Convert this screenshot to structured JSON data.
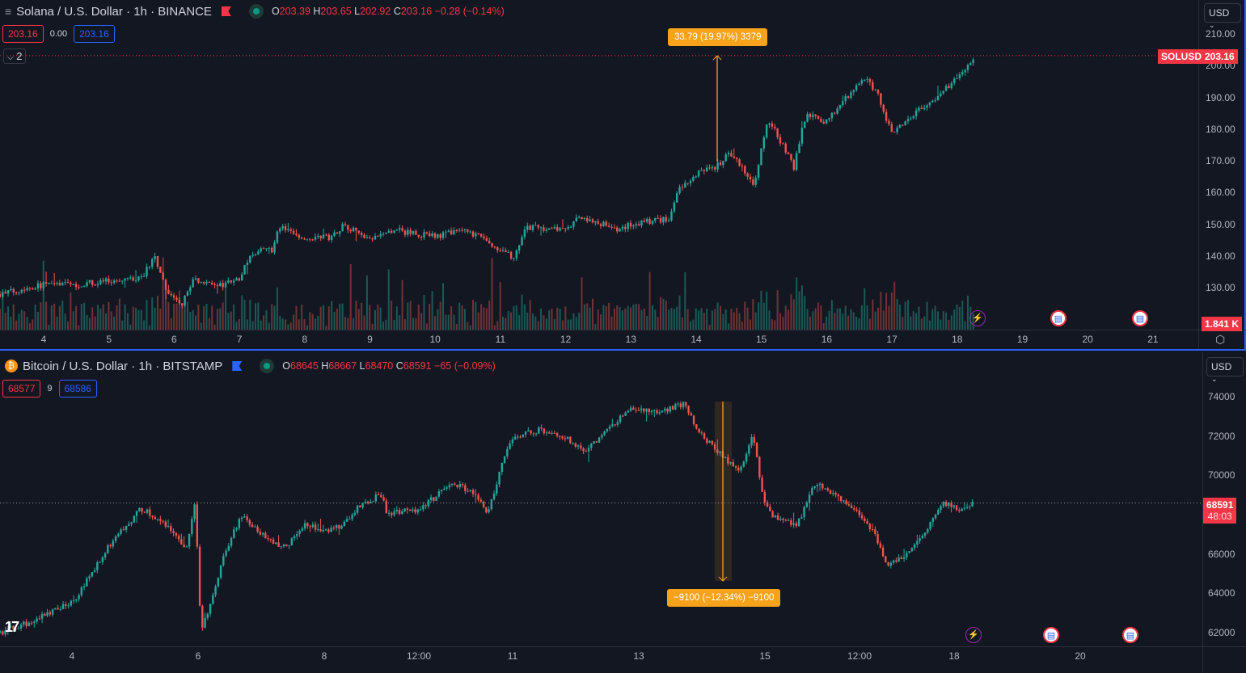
{
  "top": {
    "symbol_title": "Solana / U.S. Dollar · 1h · BINANCE",
    "ohlc": {
      "o_label": "O",
      "o": "203.39",
      "h_label": "H",
      "h": "203.65",
      "l_label": "L",
      "l": "202.92",
      "c_label": "C",
      "c": "203.16",
      "change": "−0.28 (−0.14%)"
    },
    "bid": "203.16",
    "spread": "0.00",
    "ask": "203.16",
    "collapse_label": "2",
    "currency": "USD",
    "price_ticks": [
      "210.00",
      "200.00",
      "190.00",
      "180.00",
      "170.00",
      "160.00",
      "150.00",
      "140.00",
      "130.00"
    ],
    "last_price_symbol": "SOLUSD",
    "last_price": "203.16",
    "volume_label": "1.841 K",
    "time_ticks": [
      "4",
      "5",
      "6",
      "7",
      "8",
      "9",
      "10",
      "11",
      "12",
      "13",
      "14",
      "15",
      "16",
      "17",
      "18",
      "19",
      "20",
      "21"
    ],
    "measure_label": "33.79 (19.97%) 3379",
    "colors": {
      "accent": "#2962ff",
      "up": "#26a69a",
      "down": "#ef5350",
      "measure": "#f7a21b"
    }
  },
  "bottom": {
    "symbol_title": "Bitcoin / U.S. Dollar · 1h · BITSTAMP",
    "ohlc": {
      "o_label": "O",
      "o": "68645",
      "h_label": "H",
      "h": "68667",
      "l_label": "L",
      "l": "68470",
      "c_label": "C",
      "c": "68591",
      "change": "−65 (−0.09%)"
    },
    "bid": "68577",
    "spread": "9",
    "ask": "68586",
    "currency": "USD",
    "price_ticks": [
      "74000",
      "72000",
      "70000",
      "66000",
      "64000",
      "62000"
    ],
    "last_price": "68591",
    "countdown": "48:03",
    "time_ticks": [
      "4",
      "6",
      "8",
      "12:00",
      "11",
      "13",
      "15",
      "12:00",
      "18",
      "20"
    ],
    "measure_label": "−9100 (−12.34%) −9100",
    "logo": "TV"
  },
  "chart_data": [
    {
      "type": "candlestick",
      "series": "SOLUSD 1h",
      "ylim": [
        120,
        212
      ],
      "x_unit": "day",
      "path": [
        [
          3.33,
          128
        ],
        [
          4,
          131
        ],
        [
          4.5,
          131
        ],
        [
          5,
          132
        ],
        [
          5.5,
          133
        ],
        [
          5.7,
          140
        ],
        [
          5.9,
          128
        ],
        [
          6.1,
          124
        ],
        [
          6.3,
          133
        ],
        [
          6.6,
          130
        ],
        [
          7,
          133
        ],
        [
          7.2,
          141
        ],
        [
          7.5,
          142
        ],
        [
          7.6,
          149
        ],
        [
          8,
          146
        ],
        [
          8.4,
          146
        ],
        [
          8.6,
          150
        ],
        [
          9,
          145
        ],
        [
          9.4,
          148
        ],
        [
          10,
          146
        ],
        [
          10.4,
          148
        ],
        [
          10.8,
          145
        ],
        [
          11,
          141
        ],
        [
          11.2,
          140
        ],
        [
          11.4,
          149
        ],
        [
          12,
          148
        ],
        [
          12.2,
          152
        ],
        [
          12.6,
          150
        ],
        [
          12.8,
          148
        ],
        [
          13,
          150
        ],
        [
          13.6,
          152
        ],
        [
          13.7,
          160
        ],
        [
          14,
          166
        ],
        [
          14.4,
          169
        ],
        [
          14.5,
          173
        ],
        [
          14.8,
          165
        ],
        [
          14.9,
          162
        ],
        [
          15,
          175
        ],
        [
          15.1,
          183
        ],
        [
          15.3,
          176
        ],
        [
          15.5,
          168
        ],
        [
          15.6,
          178
        ],
        [
          15.7,
          185
        ],
        [
          16,
          182
        ],
        [
          16.2,
          188
        ],
        [
          16.5,
          194
        ],
        [
          16.6,
          197
        ],
        [
          16.8,
          190
        ],
        [
          17,
          178
        ],
        [
          17.4,
          186
        ],
        [
          17.6,
          188
        ],
        [
          17.9,
          194
        ],
        [
          18,
          196
        ],
        [
          18.26,
          203.16
        ]
      ]
    },
    {
      "type": "candlestick",
      "series": "BTCUSD 1h",
      "ylim": [
        61500,
        75000
      ],
      "x_unit": "day",
      "path": [
        [
          2.86,
          62000
        ],
        [
          3.3,
          62500
        ],
        [
          4,
          63500
        ],
        [
          4.6,
          66500
        ],
        [
          5.1,
          68300
        ],
        [
          5.5,
          67500
        ],
        [
          5.8,
          66200
        ],
        [
          5.95,
          68500
        ],
        [
          6.05,
          62000
        ],
        [
          6.25,
          64000
        ],
        [
          6.4,
          66000
        ],
        [
          6.7,
          68000
        ],
        [
          7,
          67000
        ],
        [
          7.4,
          66300
        ],
        [
          7.7,
          67600
        ],
        [
          8,
          67200
        ],
        [
          8.3,
          67500
        ],
        [
          8.6,
          68600
        ],
        [
          8.9,
          69000
        ],
        [
          9,
          68000
        ],
        [
          9.5,
          68300
        ],
        [
          9.8,
          69000
        ],
        [
          10,
          69700
        ],
        [
          10.4,
          69000
        ],
        [
          10.6,
          68000
        ],
        [
          10.8,
          70500
        ],
        [
          11,
          72000
        ],
        [
          11.4,
          72300
        ],
        [
          11.8,
          72000
        ],
        [
          12.1,
          71200
        ],
        [
          12.4,
          72000
        ],
        [
          12.8,
          73300
        ],
        [
          13.4,
          73300
        ],
        [
          13.7,
          73600
        ],
        [
          14,
          72000
        ],
        [
          14.3,
          71000
        ],
        [
          14.6,
          70200
        ],
        [
          14.8,
          72000
        ],
        [
          14.95,
          69000
        ],
        [
          15.1,
          68000
        ],
        [
          15.5,
          67500
        ],
        [
          15.8,
          69700
        ],
        [
          16.1,
          69000
        ],
        [
          16.4,
          68400
        ],
        [
          16.7,
          67200
        ],
        [
          16.9,
          65500
        ],
        [
          17.2,
          65800
        ],
        [
          17.5,
          67000
        ],
        [
          17.8,
          68600
        ],
        [
          18.1,
          68200
        ],
        [
          18.3,
          68591
        ]
      ]
    }
  ]
}
